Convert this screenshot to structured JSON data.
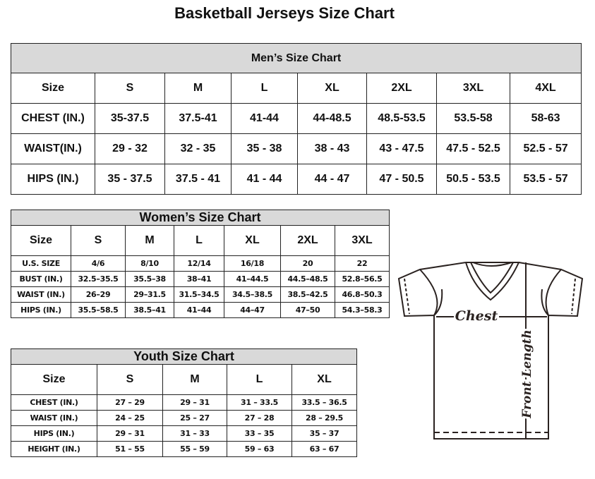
{
  "title": "Basketball Jerseys Size Chart",
  "mens": {
    "heading": "Men’s Size Chart",
    "header": [
      "Size",
      "S",
      "M",
      "L",
      "XL",
      "2XL",
      "3XL",
      "4XL"
    ],
    "rows": [
      [
        "CHEST (IN.)",
        "35-37.5",
        "37.5-41",
        "41-44",
        "44-48.5",
        "48.5-53.5",
        "53.5-58",
        "58-63"
      ],
      [
        "WAIST(IN.)",
        "29 - 32",
        "32 - 35",
        "35 - 38",
        "38 - 43",
        "43 - 47.5",
        "47.5 - 52.5",
        "52.5 - 57"
      ],
      [
        "HIPS (IN.)",
        "35 - 37.5",
        "37.5 - 41",
        "41 - 44",
        "44 - 47",
        "47 - 50.5",
        "50.5 - 53.5",
        "53.5 - 57"
      ]
    ]
  },
  "womens": {
    "heading": "Women’s Size Chart",
    "header": [
      "Size",
      "S",
      "M",
      "L",
      "XL",
      "2XL",
      "3XL"
    ],
    "rows": [
      [
        "U.S.  SIZE",
        "4/6",
        "8/10",
        "12/14",
        "16/18",
        "20",
        "22"
      ],
      [
        "BUST  (IN.)",
        "32.5–35.5",
        "35.5–38",
        "38–41",
        "41–44.5",
        "44.5–48.5",
        "52.8–56.5"
      ],
      [
        "WAIST  (IN.)",
        "26–29",
        "29–31.5",
        "31.5–34.5",
        "34.5–38.5",
        "38.5–42.5",
        "46.8–50.3"
      ],
      [
        "HIPS  (IN.)",
        "35.5–58.5",
        "38.5–41",
        "41–44",
        "44–47",
        "47–50",
        "54.3–58.3"
      ]
    ]
  },
  "youth": {
    "heading": "Youth Size Chart",
    "header": [
      "Size",
      "S",
      "M",
      "L",
      "XL"
    ],
    "rows": [
      [
        "CHEST  (IN.)",
        "27  –  29",
        "29  –  31",
        "31  –  33.5",
        "33.5  –  36.5"
      ],
      [
        "WAIST  (IN.)",
        "24  –  25",
        "25  –  27",
        "27  –  28",
        "28  –  29.5"
      ],
      [
        "HIPS  (IN.)",
        "29  –  31",
        "31  –  33",
        "33  –  35",
        "35  –  37"
      ],
      [
        "HEIGHT  (IN.)",
        "51  –  55",
        "55  –  59",
        "59  –  63",
        "63  –  67"
      ]
    ]
  },
  "diagram": {
    "chest_label": "Chest",
    "length_label": "Front Length"
  }
}
